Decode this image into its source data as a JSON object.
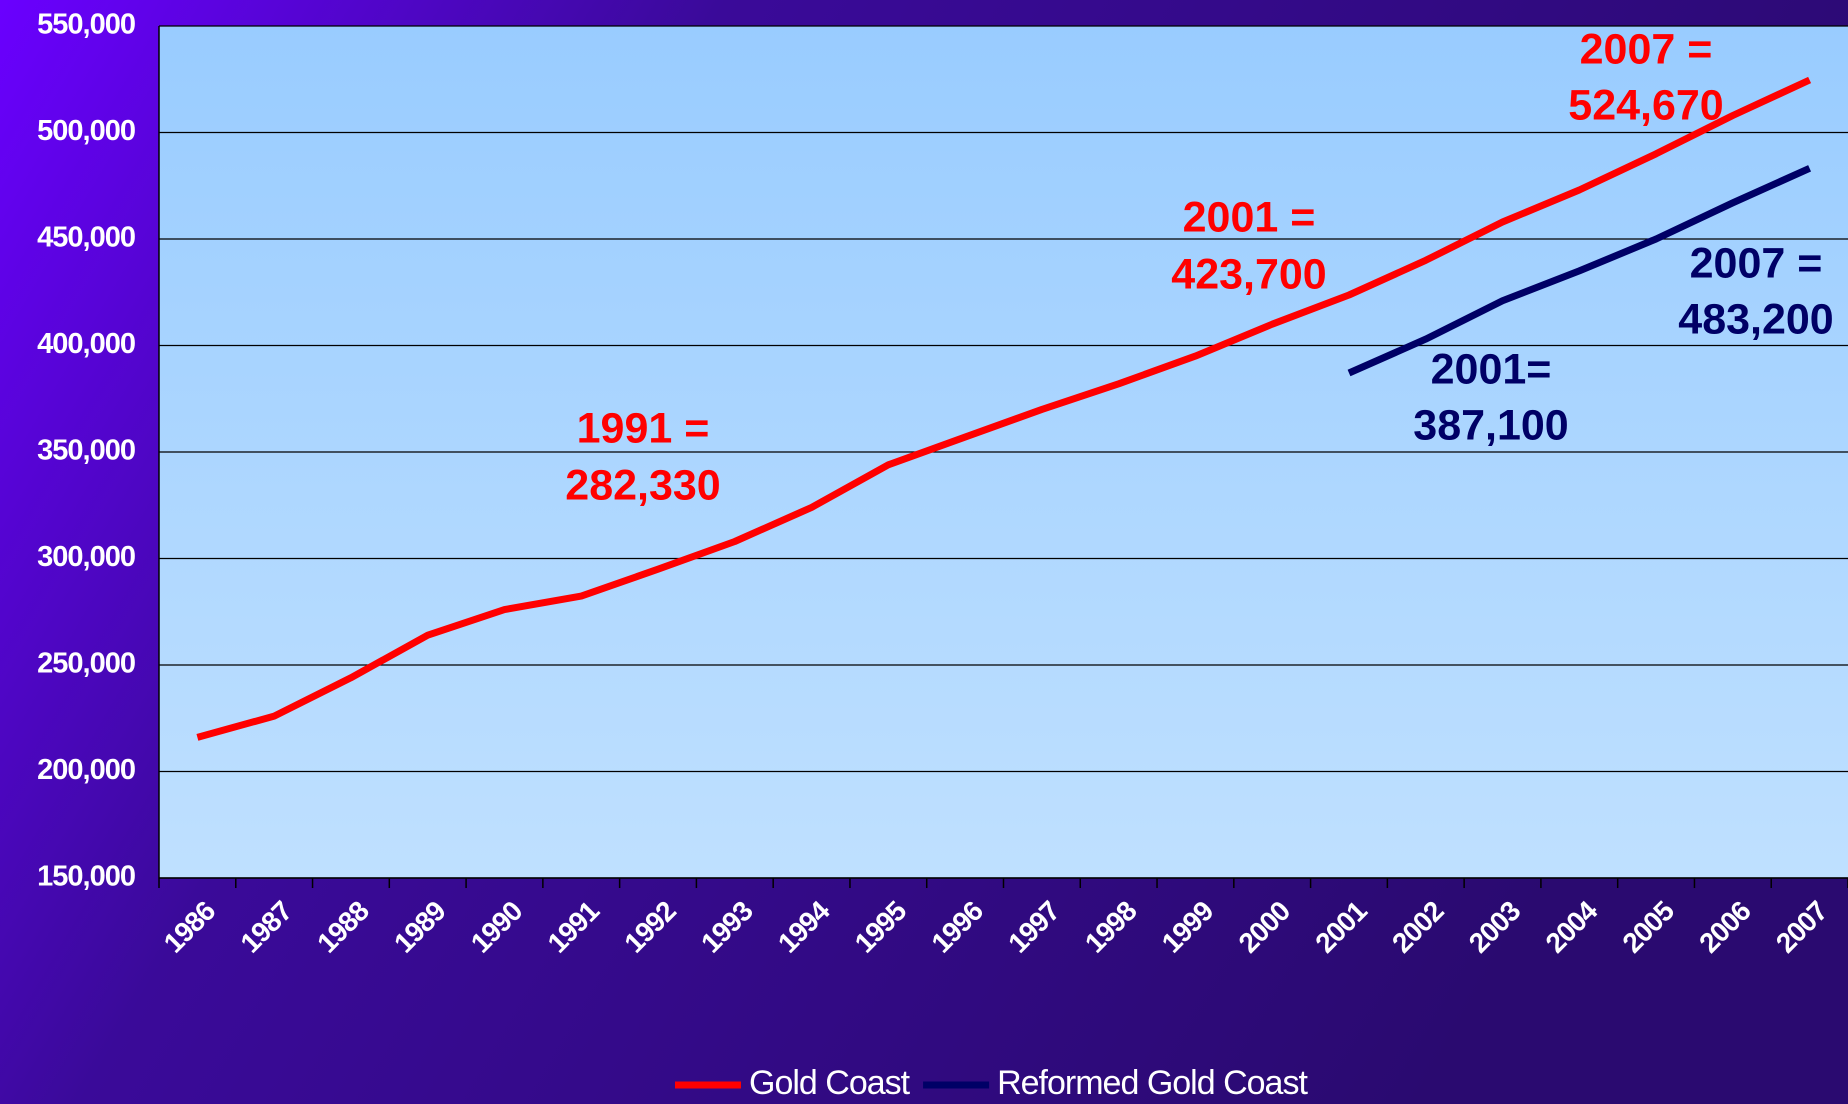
{
  "chart_data": {
    "type": "line",
    "categories": [
      "1986",
      "1987",
      "1988",
      "1989",
      "1990",
      "1991",
      "1992",
      "1993",
      "1994",
      "1995",
      "1996",
      "1997",
      "1998",
      "1999",
      "2000",
      "2001",
      "2002",
      "2003",
      "2004",
      "2005",
      "2006",
      "2007"
    ],
    "series": [
      {
        "name": "Gold Coast",
        "color": "#ff0000",
        "values": [
          216000,
          226000,
          244000,
          264000,
          276000,
          282330,
          295000,
          308000,
          324000,
          344000,
          357000,
          370000,
          382000,
          395000,
          410000,
          423700,
          440000,
          458000,
          473000,
          490000,
          508000,
          524670
        ]
      },
      {
        "name": "Reformed Gold Coast",
        "color": "#000066",
        "values": [
          null,
          null,
          null,
          null,
          null,
          null,
          null,
          null,
          null,
          null,
          null,
          null,
          null,
          null,
          null,
          387100,
          403000,
          421000,
          435000,
          450000,
          467000,
          483200
        ]
      }
    ],
    "ylim": [
      150000,
      550000
    ],
    "yticks": [
      {
        "value": 150000,
        "label": "150,000"
      },
      {
        "value": 200000,
        "label": "200,000"
      },
      {
        "value": 250000,
        "label": "250,000"
      },
      {
        "value": 300000,
        "label": "300,000"
      },
      {
        "value": 350000,
        "label": "350,000"
      },
      {
        "value": 400000,
        "label": "400,000"
      },
      {
        "value": 450000,
        "label": "450,000"
      },
      {
        "value": 500000,
        "label": "500,000"
      },
      {
        "value": 550000,
        "label": "550,000"
      }
    ],
    "grid": true,
    "legend": "bottom",
    "annotations": [
      {
        "lines": [
          "1991 =",
          "282,330"
        ],
        "color": "#ff0000"
      },
      {
        "lines": [
          "2001 =",
          "423,700"
        ],
        "color": "#ff0000"
      },
      {
        "lines": [
          "2007 =",
          "524,670"
        ],
        "color": "#ff0000"
      },
      {
        "lines": [
          "2001=",
          "387,100"
        ],
        "color": "#000066"
      },
      {
        "lines": [
          "2007 =",
          "483,200"
        ],
        "color": "#000066"
      }
    ]
  }
}
